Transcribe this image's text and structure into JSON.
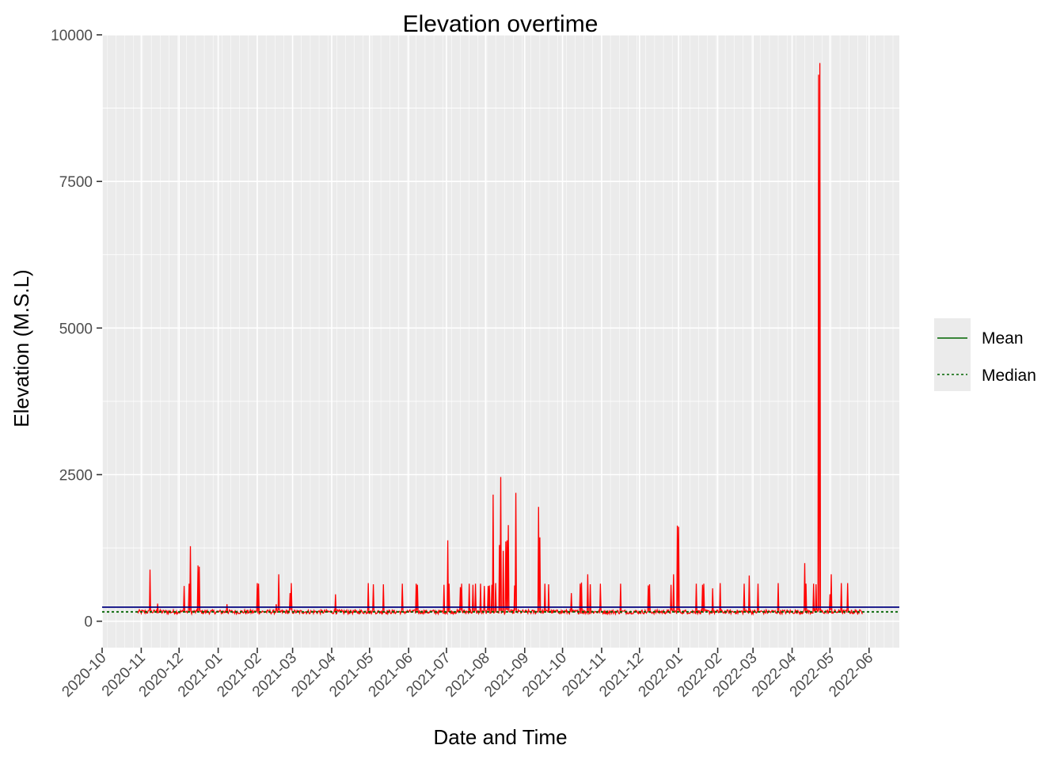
{
  "chart_data": {
    "type": "line",
    "title": "Elevation overtime",
    "xlabel": "Date and Time",
    "ylabel": "Elevation (M.S.L)",
    "xlim": [
      "2020-10-01",
      "2022-06-25"
    ],
    "ylim": [
      -450,
      10000
    ],
    "y_ticks": [
      0,
      2500,
      5000,
      7500,
      10000
    ],
    "x_ticks": [
      "2020-10",
      "2020-11",
      "2020-12",
      "2021-01",
      "2021-02",
      "2021-03",
      "2021-04",
      "2021-05",
      "2021-06",
      "2021-07",
      "2021-08",
      "2021-09",
      "2021-10",
      "2021-11",
      "2021-12",
      "2022-01",
      "2022-02",
      "2022-03",
      "2022-04",
      "2022-05",
      "2022-06"
    ],
    "grid": true,
    "legend_position": "right",
    "series": [
      {
        "name": "Elevation",
        "color": "#ff0000",
        "baseline": 160,
        "start": "2020-10-29",
        "end": "2022-05-27",
        "spikes": [
          [
            "2020-11-08",
            880
          ],
          [
            "2020-11-14",
            300
          ],
          [
            "2020-12-05",
            600
          ],
          [
            "2020-12-09",
            640
          ],
          [
            "2020-12-10",
            1280
          ],
          [
            "2020-12-16",
            950
          ],
          [
            "2020-12-17",
            930
          ],
          [
            "2021-01-08",
            290
          ],
          [
            "2021-02-01",
            650
          ],
          [
            "2021-02-02",
            640
          ],
          [
            "2021-02-16",
            290
          ],
          [
            "2021-02-18",
            800
          ],
          [
            "2021-02-27",
            480
          ],
          [
            "2021-02-28",
            650
          ],
          [
            "2021-04-04",
            460
          ],
          [
            "2021-04-30",
            650
          ],
          [
            "2021-05-04",
            630
          ],
          [
            "2021-05-12",
            630
          ],
          [
            "2021-05-27",
            640
          ],
          [
            "2021-06-07",
            640
          ],
          [
            "2021-06-08",
            620
          ],
          [
            "2021-06-29",
            620
          ],
          [
            "2021-07-02",
            1380
          ],
          [
            "2021-07-03",
            640
          ],
          [
            "2021-07-12",
            580
          ],
          [
            "2021-07-13",
            640
          ],
          [
            "2021-07-19",
            640
          ],
          [
            "2021-07-22",
            620
          ],
          [
            "2021-07-24",
            640
          ],
          [
            "2021-07-28",
            640
          ],
          [
            "2021-07-31",
            600
          ],
          [
            "2021-08-03",
            600
          ],
          [
            "2021-08-04",
            610
          ],
          [
            "2021-08-06",
            620
          ],
          [
            "2021-08-07",
            2160
          ],
          [
            "2021-08-09",
            650
          ],
          [
            "2021-08-12",
            1300
          ],
          [
            "2021-08-13",
            2460
          ],
          [
            "2021-08-15",
            1200
          ],
          [
            "2021-08-17",
            1360
          ],
          [
            "2021-08-18",
            1380
          ],
          [
            "2021-08-19",
            1640
          ],
          [
            "2021-08-24",
            610
          ],
          [
            "2021-08-25",
            2190
          ],
          [
            "2021-09-12",
            1950
          ],
          [
            "2021-09-13",
            1430
          ],
          [
            "2021-09-17",
            640
          ],
          [
            "2021-09-20",
            630
          ],
          [
            "2021-10-08",
            480
          ],
          [
            "2021-10-15",
            640
          ],
          [
            "2021-10-16",
            660
          ],
          [
            "2021-10-21",
            800
          ],
          [
            "2021-10-23",
            630
          ],
          [
            "2021-10-31",
            640
          ],
          [
            "2021-11-16",
            640
          ],
          [
            "2021-12-08",
            610
          ],
          [
            "2021-12-09",
            630
          ],
          [
            "2021-12-26",
            620
          ],
          [
            "2021-12-28",
            800
          ],
          [
            "2021-12-31",
            1630
          ],
          [
            "2022-01-01",
            1610
          ],
          [
            "2022-01-15",
            640
          ],
          [
            "2022-01-20",
            620
          ],
          [
            "2022-01-21",
            640
          ],
          [
            "2022-01-28",
            560
          ],
          [
            "2022-02-03",
            650
          ],
          [
            "2022-02-22",
            640
          ],
          [
            "2022-02-26",
            780
          ],
          [
            "2022-03-05",
            640
          ],
          [
            "2022-03-21",
            650
          ],
          [
            "2022-04-11",
            990
          ],
          [
            "2022-04-12",
            640
          ],
          [
            "2022-04-18",
            640
          ],
          [
            "2022-04-20",
            630
          ],
          [
            "2022-04-22",
            9320
          ],
          [
            "2022-04-23",
            9520
          ],
          [
            "2022-05-01",
            460
          ],
          [
            "2022-05-02",
            800
          ],
          [
            "2022-05-10",
            650
          ],
          [
            "2022-05-15",
            650
          ]
        ],
        "dips": [
          [
            "2020-12-28",
            60
          ],
          [
            "2021-02-19",
            20
          ],
          [
            "2021-04-24",
            10
          ],
          [
            "2021-07-09",
            40
          ],
          [
            "2021-07-26",
            30
          ],
          [
            "2021-08-13",
            10
          ],
          [
            "2021-08-20",
            20
          ],
          [
            "2021-11-07",
            40
          ],
          [
            "2021-12-10",
            30
          ],
          [
            "2022-01-11",
            40
          ],
          [
            "2022-03-30",
            20
          ],
          [
            "2022-04-20",
            40
          ]
        ]
      },
      {
        "name": "Mean",
        "color": "#000080",
        "legend_color": "#006400",
        "type": "hline",
        "value": 240,
        "dash": "solid"
      },
      {
        "name": "Median",
        "color": "#006400",
        "type": "hline",
        "value": 160,
        "dash": "dotted"
      }
    ]
  }
}
